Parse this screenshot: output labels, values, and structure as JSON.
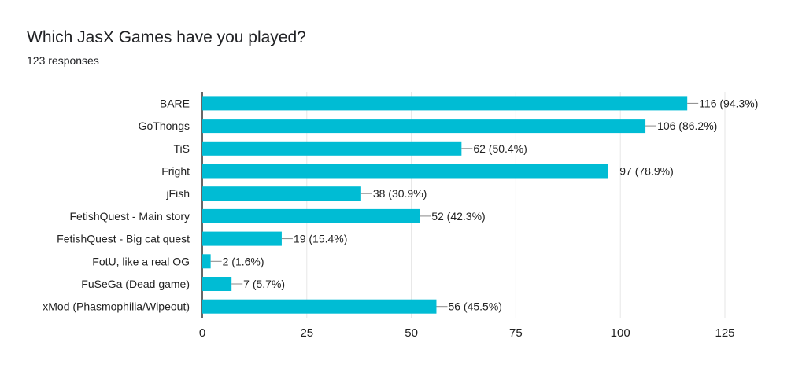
{
  "chart_data": {
    "type": "bar",
    "orientation": "horizontal",
    "title": "Which JasX Games have you played?",
    "subtitle": "123 responses",
    "categories": [
      "BARE",
      "GoThongs",
      "TiS",
      "Fright",
      "jFish",
      "FetishQuest - Main story",
      "FetishQuest - Big cat quest",
      "FotU, like a real OG",
      "FuSeGa (Dead game)",
      "xMod (Phasmophilia/Wipeout)"
    ],
    "values": [
      116,
      106,
      62,
      97,
      38,
      52,
      19,
      2,
      7,
      56
    ],
    "data_labels": [
      "116 (94.3%)",
      "106 (86.2%)",
      "62 (50.4%)",
      "97 (78.9%)",
      "38 (30.9%)",
      "52 (42.3%)",
      "19 (15.4%)",
      "2 (1.6%)",
      "7 (5.7%)",
      "56 (45.5%)"
    ],
    "xlim": [
      0,
      125
    ],
    "xticks": [
      "0",
      "25",
      "50",
      "75",
      "100",
      "125"
    ],
    "grid": true,
    "color": "#00bcd4"
  }
}
